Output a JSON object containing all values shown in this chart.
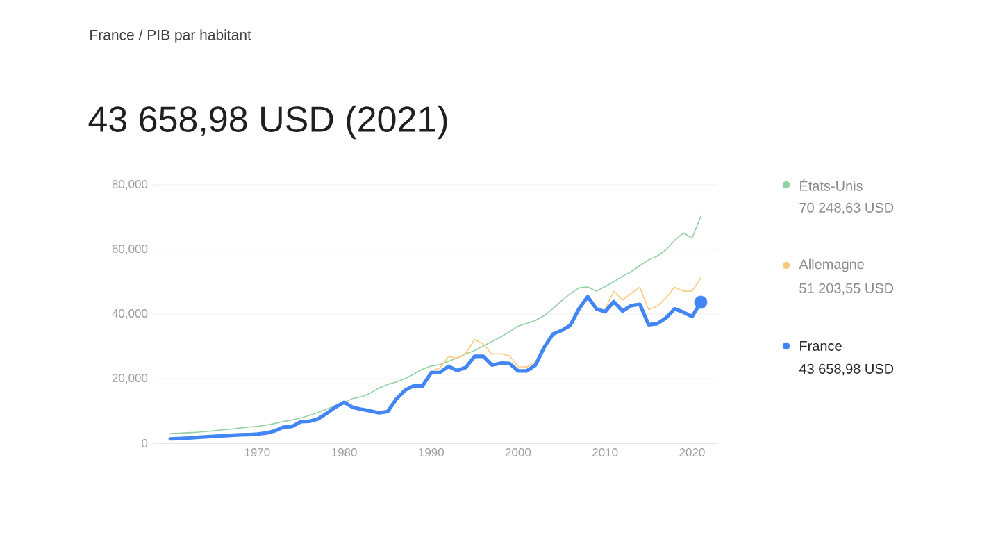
{
  "chart_data": {
    "type": "line",
    "title": "France / PIB par habitant",
    "subtitle": "43 658,98 USD (2021)",
    "x": [
      1960,
      1961,
      1962,
      1963,
      1964,
      1965,
      1966,
      1967,
      1968,
      1969,
      1970,
      1971,
      1972,
      1973,
      1974,
      1975,
      1976,
      1977,
      1978,
      1979,
      1980,
      1981,
      1982,
      1983,
      1984,
      1985,
      1986,
      1987,
      1988,
      1989,
      1990,
      1991,
      1992,
      1993,
      1994,
      1995,
      1996,
      1997,
      1998,
      1999,
      2000,
      2001,
      2002,
      2003,
      2004,
      2005,
      2006,
      2007,
      2008,
      2009,
      2010,
      2011,
      2012,
      2013,
      2014,
      2015,
      2016,
      2017,
      2018,
      2019,
      2020,
      2021
    ],
    "series": [
      {
        "name": "États-Unis",
        "color": "#93d0a3",
        "values": [
          3000,
          3100,
          3250,
          3400,
          3600,
          3850,
          4150,
          4350,
          4700,
          5000,
          5200,
          5600,
          6100,
          6700,
          7200,
          7800,
          8600,
          9500,
          10600,
          11700,
          12600,
          13900,
          14400,
          15500,
          17100,
          18200,
          19000,
          20000,
          21400,
          22900,
          23900,
          24300,
          25400,
          26400,
          27700,
          28700,
          30100,
          31500,
          32900,
          34500,
          36300,
          37100,
          38000,
          39500,
          41700,
          44100,
          46300,
          48100,
          48400,
          47100,
          48500,
          50000,
          51700,
          53100,
          55000,
          56800,
          57900,
          59900,
          62800,
          65100,
          63500,
          70248.63
        ]
      },
      {
        "name": "Allemagne",
        "color": "#fdc97f",
        "values": [
          null,
          null,
          null,
          null,
          null,
          null,
          null,
          null,
          null,
          null,
          null,
          null,
          null,
          null,
          null,
          null,
          null,
          null,
          null,
          null,
          null,
          null,
          null,
          null,
          null,
          null,
          null,
          null,
          null,
          null,
          22300,
          23300,
          26900,
          26300,
          27900,
          32100,
          30700,
          27600,
          27700,
          27100,
          23700,
          23600,
          25200,
          null,
          null,
          null,
          null,
          null,
          null,
          null,
          41500,
          47100,
          44300,
          46400,
          48300,
          41400,
          42400,
          45000,
          48300,
          47100,
          47100,
          51203.55
        ]
      },
      {
        "name": "France",
        "color": "#4285f4",
        "values": [
          1340,
          1450,
          1600,
          1800,
          1960,
          2110,
          2270,
          2430,
          2600,
          2640,
          2850,
          3130,
          3800,
          4980,
          5180,
          6680,
          6780,
          7550,
          9250,
          11200,
          12700,
          11100,
          10500,
          10000,
          9400,
          9800,
          13700,
          16400,
          17800,
          17700,
          21800,
          21900,
          23800,
          22500,
          23500,
          26900,
          26900,
          24200,
          24800,
          24700,
          22400,
          22400,
          24200,
          29700,
          33800,
          34900,
          36500,
          41600,
          45400,
          41600,
          40700,
          43800,
          40900,
          42600,
          43000,
          36700,
          37000,
          38800,
          41600,
          40600,
          39200,
          43658.98
        ]
      }
    ],
    "annotations": [
      "70 248,63 USD",
      "51 203,55 USD",
      "43 658,98 USD"
    ],
    "xlim": [
      1958,
      2023
    ],
    "ylim": [
      0,
      80000
    ],
    "xticks": [
      1970,
      1980,
      1990,
      2000,
      2010,
      2020
    ],
    "yticks": [
      0,
      {
        "value": 20000,
        "label": "20,000"
      },
      {
        "value": 40000,
        "label": "40,000"
      },
      {
        "value": 60000,
        "label": "60,000"
      },
      {
        "value": 80000,
        "label": "80,000"
      }
    ],
    "grid": "y",
    "legend": "right"
  }
}
